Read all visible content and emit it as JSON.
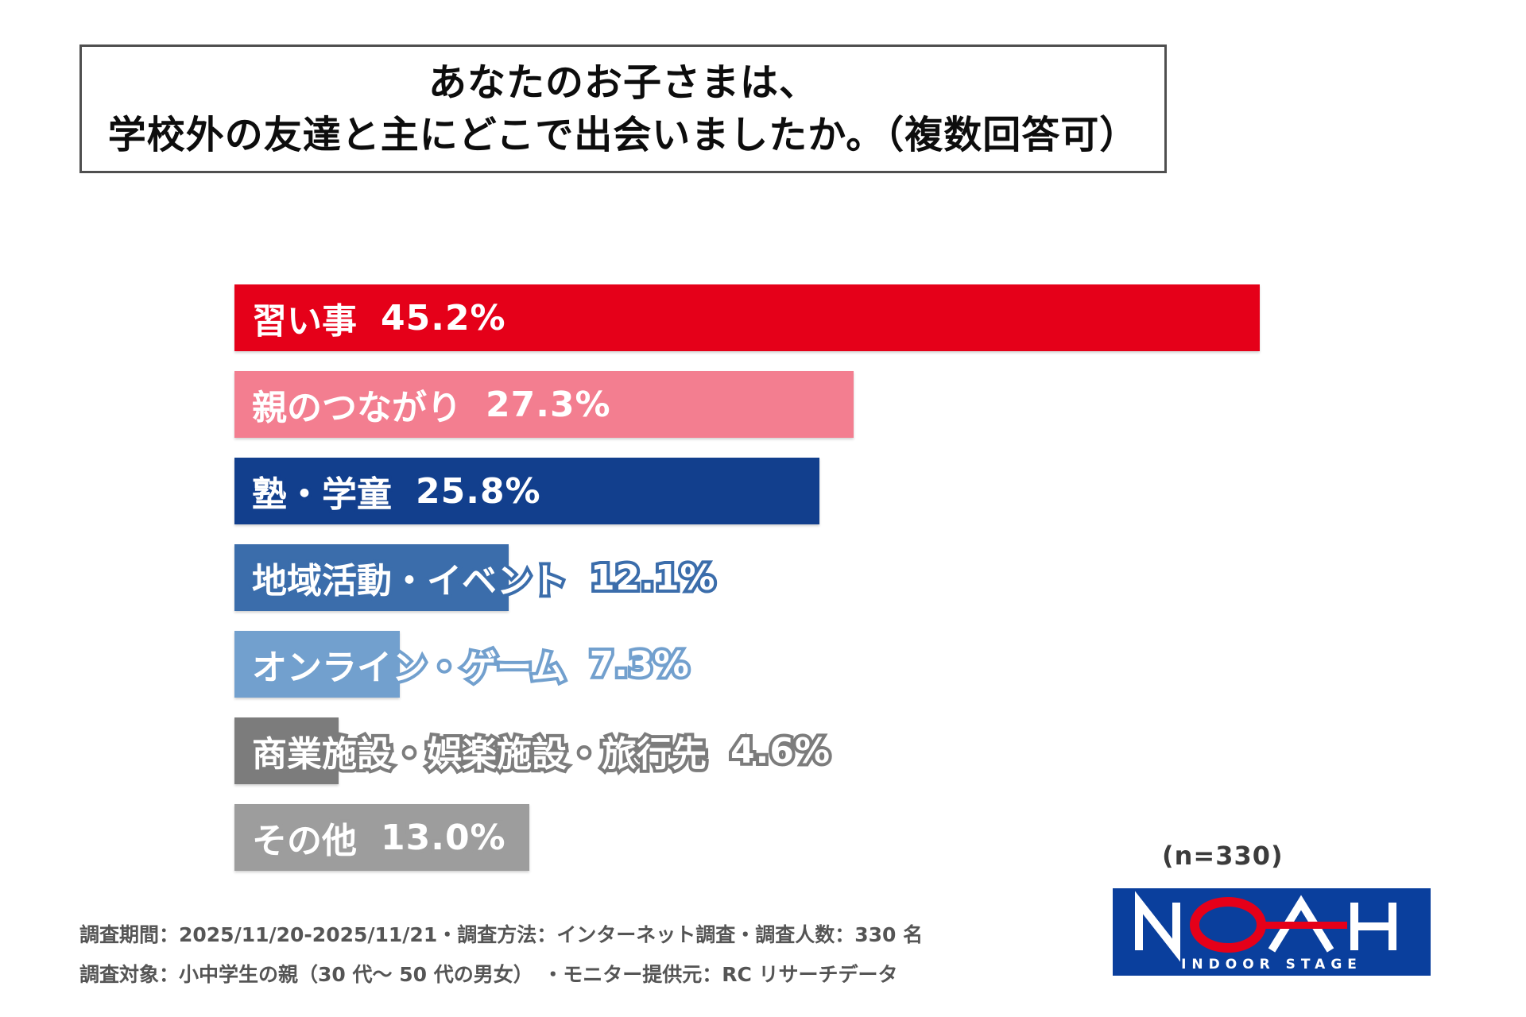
{
  "title": {
    "line1": "あなたのお子さまは、",
    "line2": "学校外の友達と主にどこで出会いましたか。（複数回答可）"
  },
  "chart_data": {
    "type": "bar",
    "orientation": "horizontal",
    "unit": "%",
    "xlim": [
      0,
      45.2
    ],
    "grid": false,
    "legend": false,
    "categories": [
      "習い事",
      "親のつながり",
      "塾・学童",
      "地域活動・イベント",
      "オンライン・ゲーム",
      "商業施設・娯楽施設・旅行先",
      "その他"
    ],
    "values": [
      45.2,
      27.3,
      25.8,
      12.1,
      7.3,
      4.6,
      13.0
    ],
    "bars": [
      {
        "label": "習い事",
        "value": 45.2,
        "value_label": "45.2%",
        "color": "#e50019"
      },
      {
        "label": "親のつながり",
        "value": 27.3,
        "value_label": "27.3%",
        "color": "#f37e90"
      },
      {
        "label": "塾・学童",
        "value": 25.8,
        "value_label": "25.8%",
        "color": "#123f8d"
      },
      {
        "label": "地域活動・イベント",
        "value": 12.1,
        "value_label": "12.1%",
        "color": "#3b6dab"
      },
      {
        "label": "オンライン・ゲーム",
        "value": 7.3,
        "value_label": "7.3%",
        "color": "#72a0ce"
      },
      {
        "label": "商業施設・娯楽施設・旅行先",
        "value": 4.6,
        "value_label": "4.6%",
        "color": "#7c7c7c"
      },
      {
        "label": "その他",
        "value": 13.0,
        "value_label": "13.0%",
        "color": "#9d9d9d"
      }
    ],
    "sample_size_note": "(n=330)"
  },
  "footer": {
    "line1": "調査期間：2025/11/20-2025/11/21・調査方法：インターネット調査・調査人数：330 名",
    "line2": "調査対象：小中学生の親（30 代〜 50 代の男女）　・モニター提供元：RC リサーチデータ"
  },
  "logo": {
    "brand": "NOAH",
    "tagline": "INDOOR STAGE",
    "bg_color": "#0a3f9d",
    "accent_color": "#e50019",
    "letter_color": "#ffffff"
  }
}
